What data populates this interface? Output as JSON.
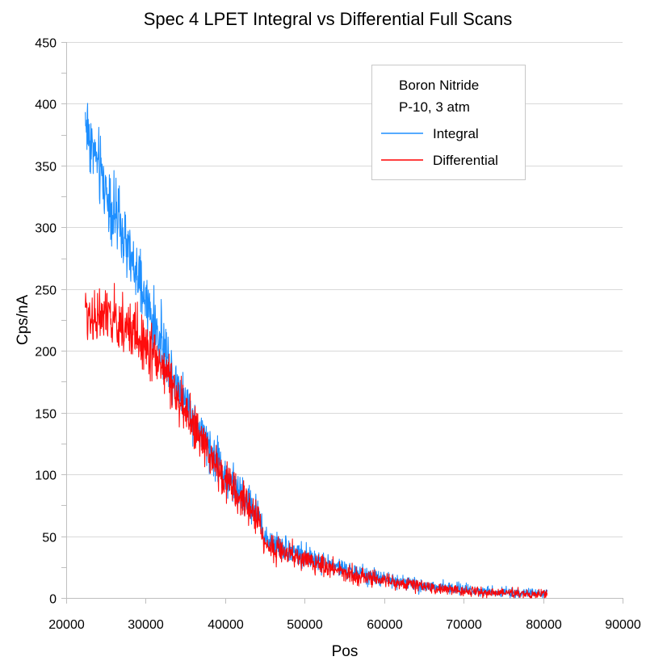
{
  "chart_data": {
    "type": "line",
    "title": "Spec 4 LPET Integral vs Differential Full Scans",
    "xlabel": "Pos",
    "ylabel": "Cps/nA",
    "xlim": [
      20000,
      90000
    ],
    "ylim": [
      0,
      450
    ],
    "x_ticks": [
      20000,
      30000,
      40000,
      50000,
      60000,
      70000,
      80000,
      90000
    ],
    "y_ticks": [
      0,
      50,
      100,
      150,
      200,
      250,
      300,
      350,
      400,
      450
    ],
    "x_tick_labels": [
      "20000",
      "30000",
      "40000",
      "50000",
      "60000",
      "70000",
      "80000",
      "90000"
    ],
    "y_tick_labels": [
      "0",
      "50",
      "100",
      "150",
      "200",
      "250",
      "300",
      "350",
      "400",
      "450"
    ],
    "grid": "horizontal major",
    "legend": {
      "position": "top-right",
      "title_lines": [
        "Boron Nitride",
        "P-10, 3 atm"
      ],
      "entries": [
        "Integral",
        "Differential"
      ]
    },
    "x_range_of_data": [
      22400,
      80500
    ],
    "series": [
      {
        "name": "Integral",
        "color": "#1e8fff",
        "noise_amplitude_note": "noisy scan; approx ±15 at start decreasing to ±3 at end",
        "x": [
          22400,
          23000,
          24000,
          25000,
          26000,
          27000,
          28000,
          29000,
          30000,
          31000,
          32000,
          33000,
          34000,
          35000,
          36000,
          37000,
          38000,
          39000,
          40000,
          41000,
          42000,
          43000,
          44000,
          44400,
          44800,
          46000,
          48000,
          50000,
          52000,
          54000,
          56000,
          58000,
          60000,
          62000,
          64000,
          66000,
          68000,
          70000,
          72000,
          74000,
          76000,
          78000,
          80500
        ],
        "values": [
          388,
          372,
          350,
          330,
          312,
          294,
          276,
          258,
          240,
          222,
          206,
          190,
          175,
          160,
          146,
          133,
          121,
          111,
          101,
          92,
          84,
          76,
          70,
          66,
          48,
          45,
          39,
          34,
          29,
          25,
          21,
          18,
          15,
          13,
          11,
          9,
          8,
          7,
          6,
          5,
          4,
          4,
          3
        ]
      },
      {
        "name": "Differential",
        "color": "#ff0000",
        "noise_amplitude_note": "noisy scan; approx ±14 at start decreasing to ±3 at end",
        "x": [
          22400,
          23000,
          24000,
          25000,
          26000,
          27000,
          28000,
          29000,
          30000,
          31000,
          32000,
          33000,
          34000,
          35000,
          36000,
          37000,
          38000,
          39000,
          40000,
          41000,
          42000,
          43000,
          44000,
          44400,
          44800,
          46000,
          48000,
          50000,
          52000,
          54000,
          56000,
          58000,
          60000,
          62000,
          64000,
          66000,
          68000,
          70000,
          72000,
          74000,
          76000,
          78000,
          80500
        ],
        "values": [
          232,
          230,
          228,
          226,
          224,
          221,
          217,
          212,
          206,
          198,
          188,
          176,
          163,
          150,
          138,
          126,
          116,
          106,
          96,
          88,
          80,
          72,
          66,
          62,
          44,
          41,
          36,
          31,
          27,
          23,
          19,
          16,
          14,
          12,
          10,
          8,
          7,
          6,
          5,
          4,
          4,
          3,
          3
        ]
      }
    ]
  }
}
